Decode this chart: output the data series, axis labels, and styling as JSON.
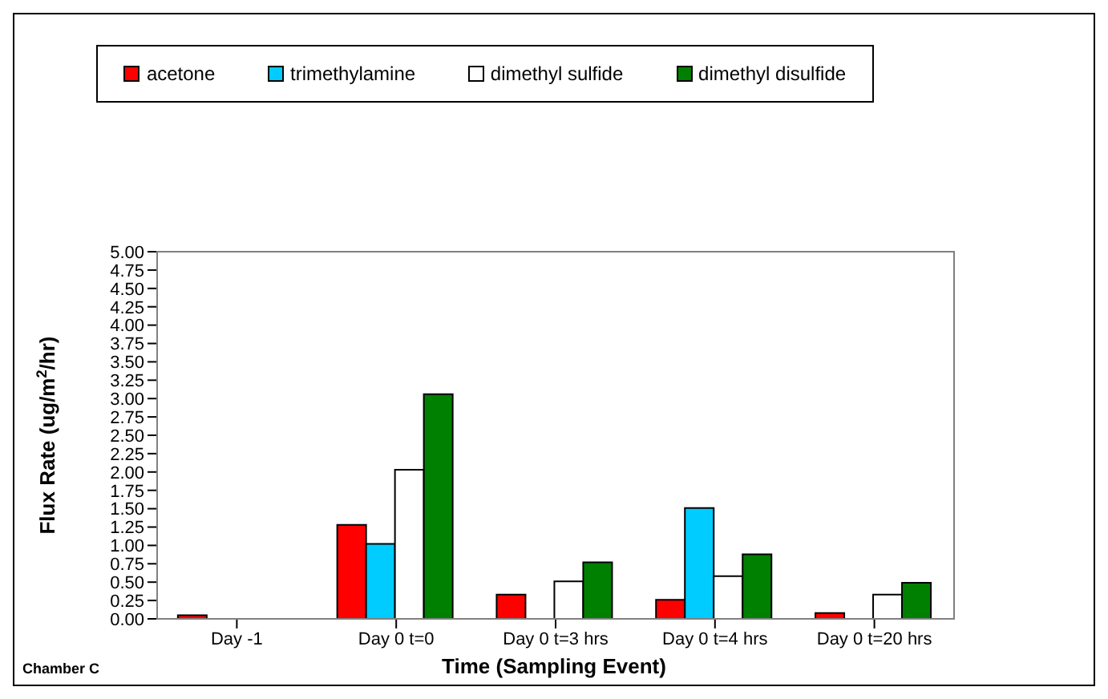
{
  "chart_data": {
    "type": "bar",
    "xlabel": "Time (Sampling Event)",
    "ylabel": "Flux Rate (ug/m$^{2}$/hr)",
    "annotations": [
      "Chamber C"
    ],
    "categories": [
      "Day -1",
      "Day 0 t=0",
      "Day 0 t=3 hrs",
      "Day 0 t=4 hrs",
      "Day 0 t=20 hrs"
    ],
    "series": [
      {
        "name": "acetone",
        "color": "#ff0000",
        "values": [
          0.05,
          1.28,
          0.33,
          0.26,
          0.08
        ]
      },
      {
        "name": "trimethylamine",
        "color": "#00ccff",
        "values": [
          null,
          1.02,
          null,
          1.51,
          null
        ]
      },
      {
        "name": "dimethyl sulfide",
        "color": "#ffffff",
        "values": [
          null,
          2.03,
          0.51,
          0.58,
          0.33
        ]
      },
      {
        "name": "dimethyl disulfide",
        "color": "#008000",
        "values": [
          null,
          3.06,
          0.77,
          0.88,
          0.49
        ]
      }
    ],
    "ylim": [
      0,
      5
    ],
    "yticks": [
      {
        "value": 0,
        "label": "0.00"
      },
      {
        "value": 0.25,
        "label": "0.25"
      },
      {
        "value": 0.5,
        "label": "0.50"
      },
      {
        "value": 0.75,
        "label": "0.75"
      },
      {
        "value": 1,
        "label": "1.00"
      },
      {
        "value": 1.25,
        "label": "1.25"
      },
      {
        "value": 1.5,
        "label": "1.50"
      },
      {
        "value": 1.75,
        "label": "1.75"
      },
      {
        "value": 2,
        "label": "2.00"
      },
      {
        "value": 2.25,
        "label": "2.25"
      },
      {
        "value": 2.5,
        "label": "2.50"
      },
      {
        "value": 2.75,
        "label": "2.75"
      },
      {
        "value": 3,
        "label": "3.00"
      },
      {
        "value": 3.25,
        "label": "3.25"
      },
      {
        "value": 3.5,
        "label": "3.50"
      },
      {
        "value": 3.75,
        "label": "3.75"
      },
      {
        "value": 4,
        "label": "4.00"
      },
      {
        "value": 4.25,
        "label": "4.25"
      },
      {
        "value": 4.5,
        "label": "4.50"
      },
      {
        "value": 4.75,
        "label": "4.75"
      },
      {
        "value": 5,
        "label": "5.00"
      }
    ],
    "grid": false,
    "legend": "top"
  }
}
